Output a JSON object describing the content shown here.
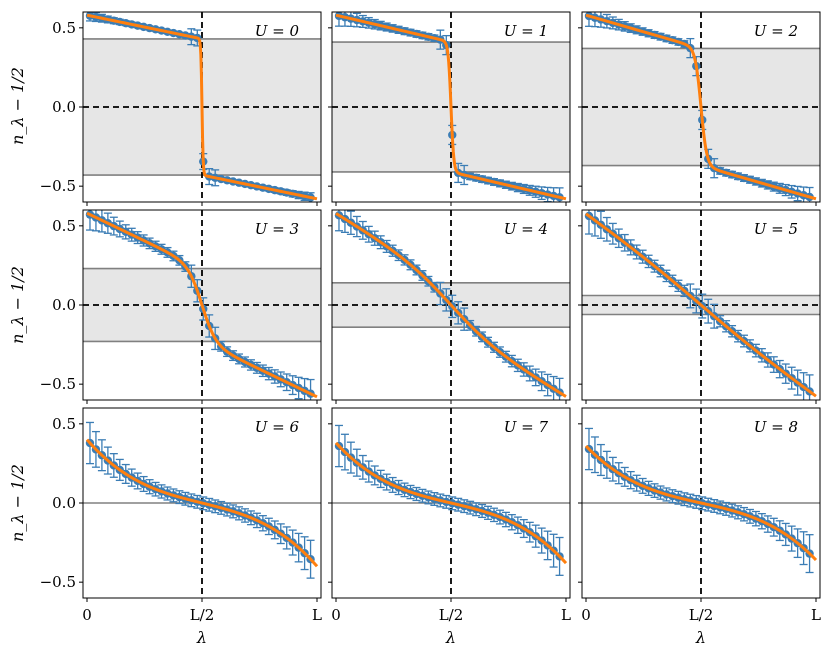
{
  "figure": {
    "ylabel": "n_λ − 1/2",
    "xlabel": "λ",
    "xtick_labels": [
      "0",
      "L/2",
      "L"
    ],
    "ytick_labels": [
      "0.5",
      "0.0",
      "−0.5"
    ],
    "colors": {
      "fit": "#ff7f0e",
      "points": "#3b7db5",
      "band_fill": "#e6e6e6",
      "band_edge": "#808080"
    }
  },
  "chart_data": [
    {
      "type": "scatter",
      "panel_label": "U = 0",
      "x_range": [
        0,
        1
      ],
      "ylim": [
        -0.6,
        0.6
      ],
      "gap": 0.43,
      "a": 0.98,
      "steep": 0.005,
      "err": 0.01,
      "n_points": 38
    },
    {
      "type": "scatter",
      "panel_label": "U = 1",
      "x_range": [
        0,
        1
      ],
      "ylim": [
        -0.6,
        0.6
      ],
      "gap": 0.41,
      "a": 0.92,
      "steep": 0.012,
      "err": 0.02,
      "n_points": 38
    },
    {
      "type": "scatter",
      "panel_label": "U = 2",
      "x_range": [
        0,
        1
      ],
      "ylim": [
        -0.6,
        0.6
      ],
      "gap": 0.37,
      "a": 0.85,
      "steep": 0.025,
      "err": 0.02,
      "n_points": 38
    },
    {
      "type": "scatter",
      "panel_label": "U = 3",
      "x_range": [
        0,
        1
      ],
      "ylim": [
        -0.6,
        0.6
      ],
      "gap": 0.23,
      "a": 0.78,
      "steep": 0.06,
      "err": 0.03,
      "n_points": 38
    },
    {
      "type": "scatter",
      "panel_label": "U = 4",
      "x_range": [
        0,
        1
      ],
      "ylim": [
        -0.6,
        0.6
      ],
      "gap": 0.14,
      "a": 0.55,
      "steep": 0.2,
      "err": 0.03,
      "n_points": 38
    },
    {
      "type": "scatter",
      "panel_label": "U = 5",
      "x_range": [
        0,
        1
      ],
      "ylim": [
        -0.6,
        0.6
      ],
      "gap": 0.06,
      "a": 0.45,
      "steep": 0.3,
      "err": 0.035,
      "n_points": 38
    },
    {
      "type": "scatter",
      "panel_label": "U = 6",
      "x_range": [
        0,
        1
      ],
      "ylim": [
        -0.6,
        0.6
      ],
      "gap": 0.0,
      "a": 0.4,
      "steep": 0.3,
      "err": 0.04,
      "n_points": 38
    },
    {
      "type": "scatter",
      "panel_label": "U = 7",
      "x_range": [
        0,
        1
      ],
      "ylim": [
        -0.6,
        0.6
      ],
      "gap": 0.0,
      "a": 0.38,
      "steep": 0.3,
      "err": 0.04,
      "n_points": 38
    },
    {
      "type": "scatter",
      "panel_label": "U = 8",
      "x_range": [
        0,
        1
      ],
      "ylim": [
        -0.6,
        0.6
      ],
      "gap": 0.0,
      "a": 0.36,
      "steep": 0.3,
      "err": 0.04,
      "n_points": 38
    }
  ]
}
